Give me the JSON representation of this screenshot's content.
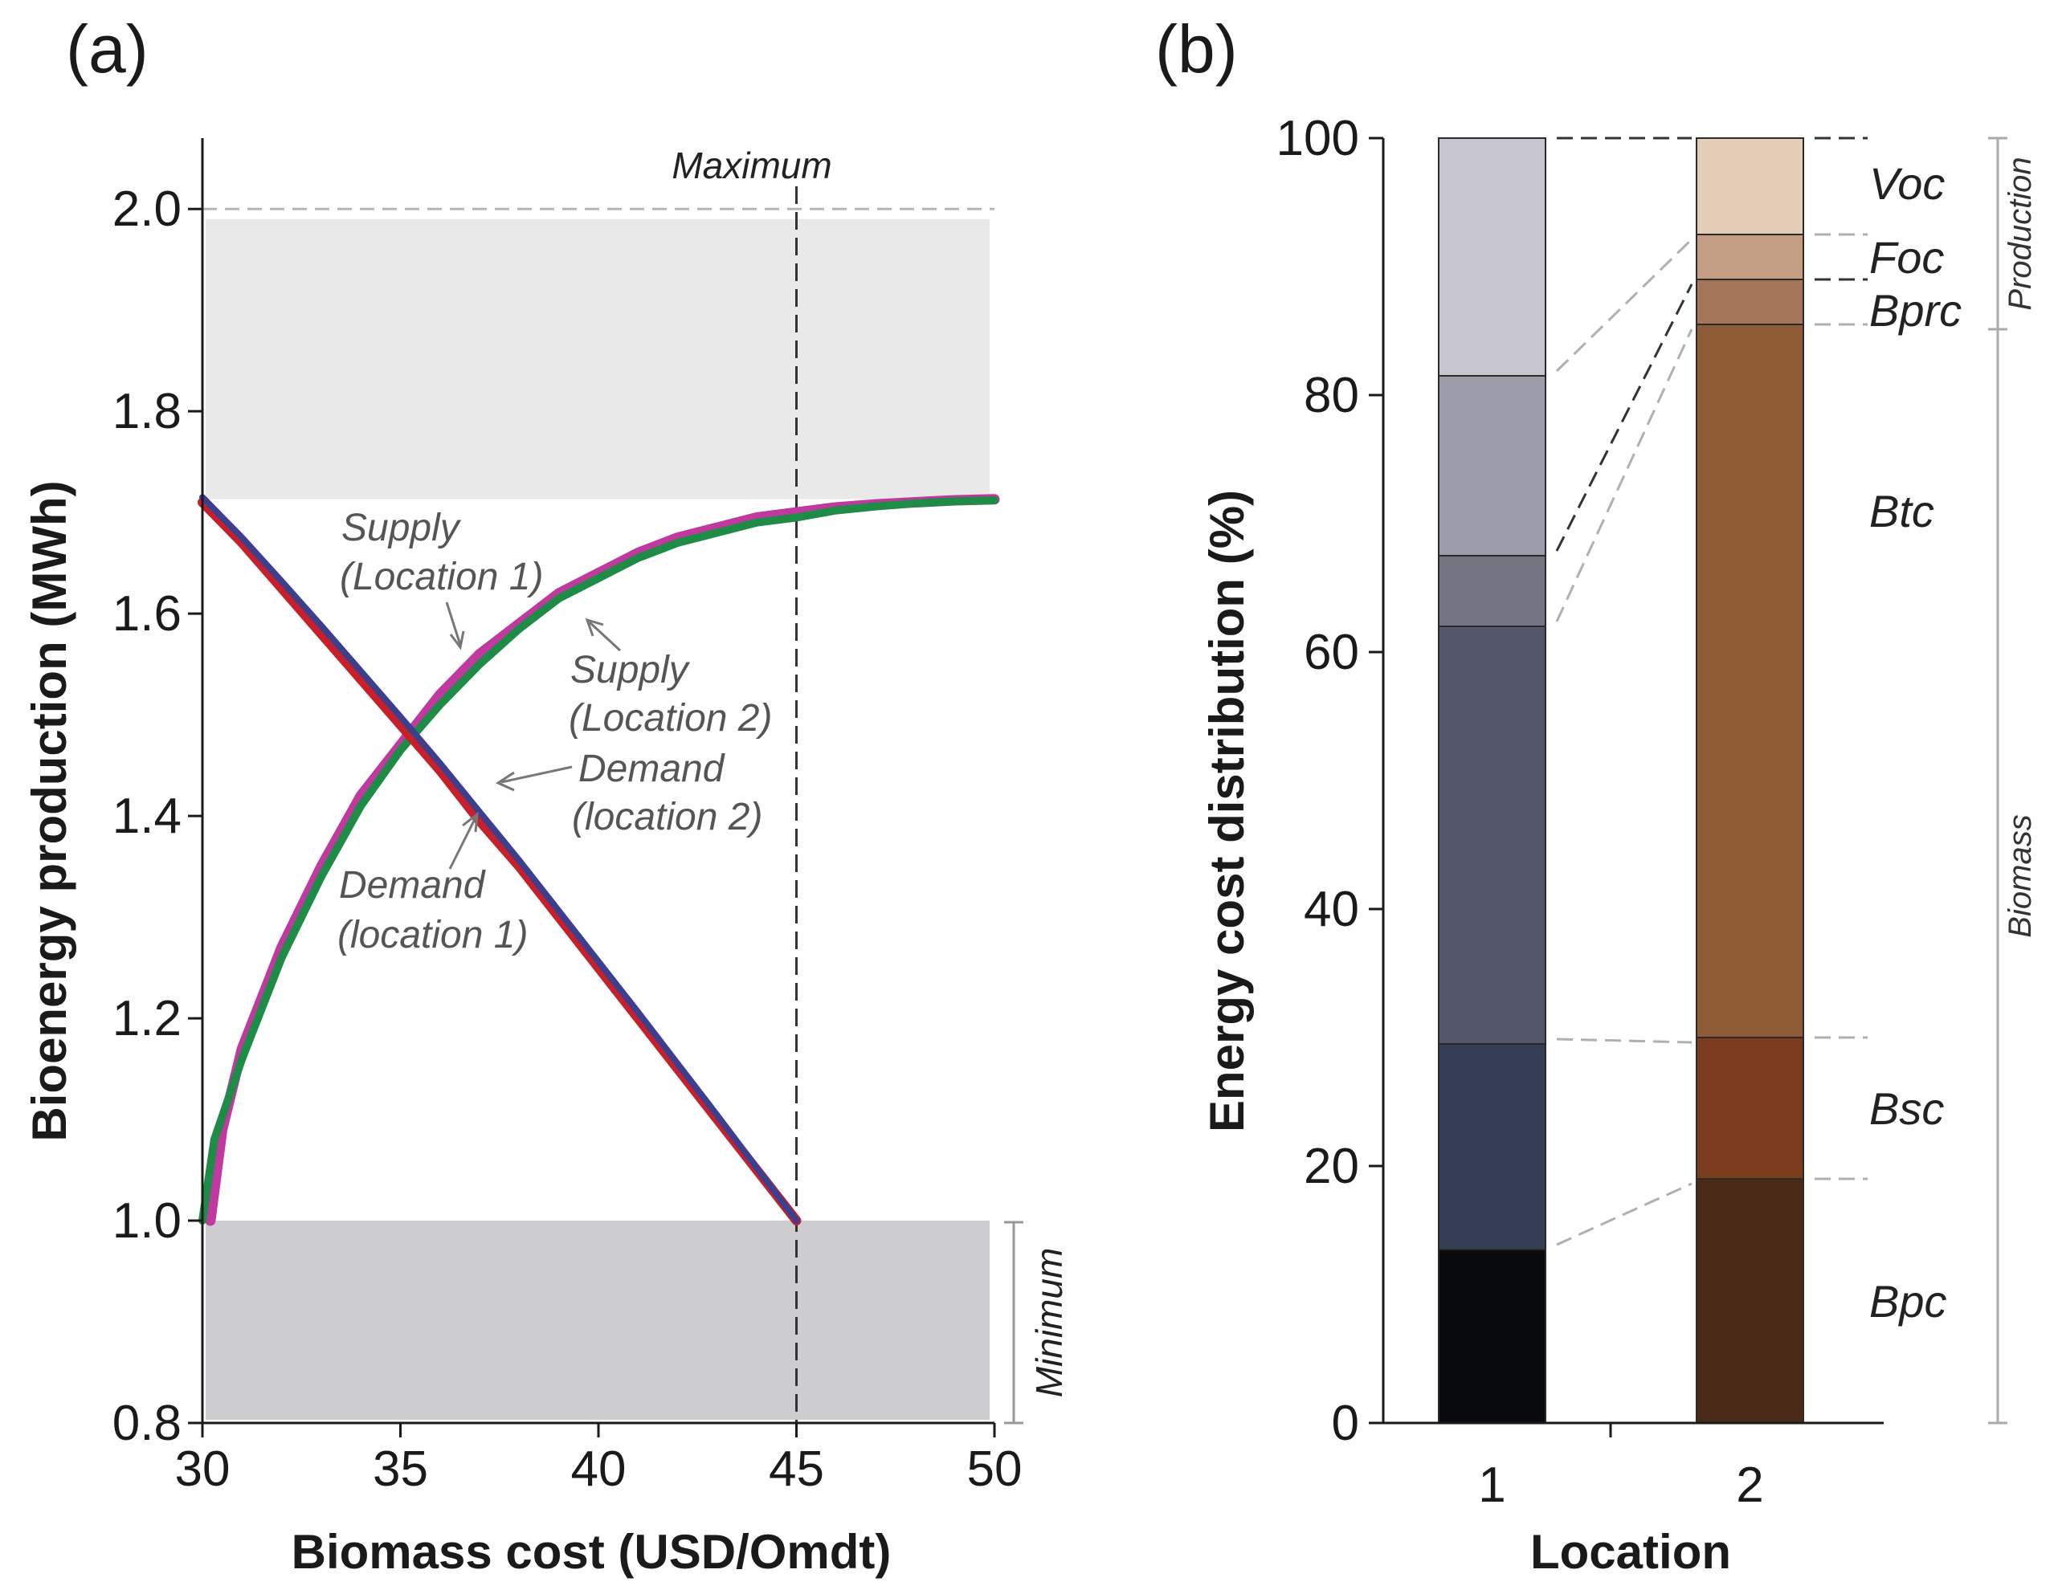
{
  "colors": {
    "supply_loc1": "#c0399e",
    "supply_loc2": "#1e8c46",
    "demand_loc1": "#c8202a",
    "demand_loc2": "#3d3f8c",
    "shade_top": "#e9e9e9",
    "shade_bottom": "#cdcdcf",
    "annotation": "#555555"
  },
  "chart_data": [
    {
      "panel": "(a)",
      "type": "line",
      "title": "",
      "xlabel": "Biomass cost (USD/Omdt)",
      "ylabel": "Bioenergy production (MWh)",
      "xlim": [
        30,
        50
      ],
      "ylim": [
        0.8,
        2.07
      ],
      "x_ticks": [
        "30",
        "35",
        "40",
        "45",
        "50"
      ],
      "y_ticks": [
        "0.8",
        "1.0",
        "1.2",
        "1.4",
        "1.6",
        "1.8",
        "2.0"
      ],
      "series": [
        {
          "name": "Supply (Location 1)",
          "color_key": "supply_loc1",
          "x": [
            30.2,
            30.5,
            31,
            32,
            33,
            34,
            35,
            36,
            37,
            38,
            39,
            40,
            41,
            42,
            43,
            44,
            45,
            46,
            47,
            48,
            49,
            50
          ],
          "y": [
            1.0,
            1.09,
            1.17,
            1.27,
            1.35,
            1.42,
            1.47,
            1.52,
            1.56,
            1.59,
            1.62,
            1.64,
            1.66,
            1.675,
            1.685,
            1.695,
            1.7,
            1.705,
            1.708,
            1.71,
            1.712,
            1.713
          ]
        },
        {
          "name": "Supply (Location 2)",
          "color_key": "supply_loc2",
          "x": [
            30.0,
            30.3,
            31,
            32,
            33,
            34,
            35,
            36,
            37,
            38,
            39,
            40,
            41,
            42,
            43,
            44,
            45,
            46,
            47,
            48,
            49,
            50
          ],
          "y": [
            1.0,
            1.08,
            1.16,
            1.26,
            1.34,
            1.41,
            1.465,
            1.51,
            1.55,
            1.585,
            1.615,
            1.635,
            1.655,
            1.67,
            1.68,
            1.69,
            1.695,
            1.702,
            1.706,
            1.709,
            1.711,
            1.712
          ]
        },
        {
          "name": "Demand (location 1)",
          "color_key": "demand_loc1",
          "x": [
            30,
            31,
            32,
            33,
            34,
            35,
            36,
            37,
            38,
            39,
            40,
            41,
            42,
            43,
            44,
            45
          ],
          "y": [
            1.71,
            1.67,
            1.625,
            1.58,
            1.535,
            1.49,
            1.445,
            1.395,
            1.35,
            1.3,
            1.25,
            1.2,
            1.15,
            1.1,
            1.05,
            1.0
          ]
        },
        {
          "name": "Demand (location 2)",
          "color_key": "demand_loc2",
          "x": [
            30,
            31,
            32,
            33,
            34,
            35,
            36,
            37,
            38,
            39,
            40,
            41,
            42,
            43,
            44,
            45
          ],
          "y": [
            1.715,
            1.675,
            1.632,
            1.588,
            1.543,
            1.498,
            1.452,
            1.404,
            1.356,
            1.306,
            1.256,
            1.206,
            1.155,
            1.104,
            1.052,
            1.0
          ]
        }
      ],
      "reference_lines": {
        "maximum_x": 45,
        "top_dashed_y": 2.0
      },
      "shaded_regions": [
        {
          "name": "upper",
          "x": [
            30,
            50
          ],
          "y": [
            1.71,
            1.99
          ]
        },
        {
          "name": "minimum",
          "x": [
            30,
            50
          ],
          "y": [
            0.8,
            1.0
          ]
        }
      ],
      "annotations": {
        "maximum": "Maximum",
        "minimum": "Minimum",
        "supply_loc1": [
          "Supply",
          "(Location 1)"
        ],
        "supply_loc2": [
          "Supply",
          "(Location 2)"
        ],
        "demand_loc2": [
          "Demand",
          "(location 2)"
        ],
        "demand_loc1": [
          "Demand",
          "(location 1)"
        ]
      }
    },
    {
      "panel": "(b)",
      "type": "bar",
      "stacked": true,
      "title": "",
      "xlabel": "Location",
      "ylabel": "Energy cost distribution (%)",
      "ylim": [
        0,
        100
      ],
      "y_ticks": [
        "0",
        "20",
        "40",
        "60",
        "80",
        "100"
      ],
      "categories": [
        "1",
        "2"
      ],
      "segments": [
        "Bpc",
        "Bsc",
        "Btc",
        "Bprc",
        "Foc",
        "Voc"
      ],
      "series": [
        {
          "name": "Bpc",
          "values": [
            13.5,
            19.0
          ],
          "colors": [
            "#090a0e",
            "#4a2a16"
          ]
        },
        {
          "name": "Bsc",
          "values": [
            16.0,
            11.0
          ],
          "colors": [
            "#343f55",
            "#7a3c1c"
          ]
        },
        {
          "name": "Btc",
          "values": [
            32.5,
            55.5
          ],
          "colors": [
            "#545768",
            "#8f5a36"
          ]
        },
        {
          "name": "Bprc",
          "values": [
            5.5,
            3.5
          ],
          "colors": [
            "#72747f",
            "#a6765a"
          ]
        },
        {
          "name": "Foc",
          "values": [
            14.0,
            3.5
          ],
          "colors": [
            "#9d9ca9",
            "#c49e83"
          ]
        },
        {
          "name": "Voc",
          "values": [
            18.5,
            7.5
          ],
          "colors": [
            "#c7c6d0",
            "#e3cdb9"
          ]
        }
      ],
      "segment_labels": [
        "Voc",
        "Foc",
        "Bprc",
        "Btc",
        "Bsc",
        "Bpc"
      ],
      "brackets": {
        "production": "Production",
        "biomass": "Biomass"
      }
    }
  ]
}
